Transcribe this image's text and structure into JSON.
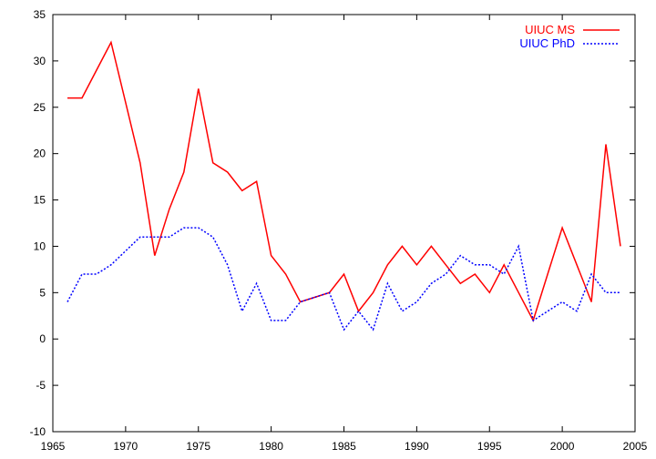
{
  "chart_data": {
    "type": "line",
    "title": "",
    "xlabel": "",
    "ylabel": "",
    "xlim": [
      1965,
      2005
    ],
    "ylim": [
      -10,
      35
    ],
    "xticks": [
      1965,
      1970,
      1975,
      1980,
      1985,
      1990,
      1995,
      2000,
      2005
    ],
    "yticks": [
      -10,
      -5,
      0,
      5,
      10,
      15,
      20,
      25,
      30,
      35
    ],
    "grid": false,
    "legend_position": "top-right",
    "series": [
      {
        "name": "UIUC MS",
        "color": "#ff0000",
        "style": "solid",
        "x": [
          1966,
          1967,
          1968,
          1969,
          1970,
          1971,
          1972,
          1973,
          1974,
          1975,
          1976,
          1977,
          1978,
          1979,
          1980,
          1981,
          1982,
          1983,
          1984,
          1985,
          1986,
          1987,
          1988,
          1989,
          1990,
          1991,
          1992,
          1993,
          1994,
          1995,
          1996,
          1997,
          1998,
          1999,
          2000,
          2001,
          2002,
          2003,
          2004
        ],
        "y": [
          26,
          26,
          29,
          32,
          25.5,
          19,
          9,
          14,
          18,
          27,
          19,
          18,
          16,
          17,
          9,
          7,
          4,
          4.5,
          5,
          7,
          3,
          5,
          8,
          10,
          8,
          10,
          8,
          6,
          7,
          5,
          8,
          5,
          2,
          7,
          12,
          8,
          4,
          21,
          10
        ]
      },
      {
        "name": "UIUC PhD",
        "color": "#0000ff",
        "style": "dotted",
        "x": [
          1966,
          1967,
          1968,
          1969,
          1970,
          1971,
          1972,
          1973,
          1974,
          1975,
          1976,
          1977,
          1978,
          1979,
          1980,
          1981,
          1982,
          1983,
          1984,
          1985,
          1986,
          1987,
          1988,
          1989,
          1990,
          1991,
          1992,
          1993,
          1994,
          1995,
          1996,
          1997,
          1998,
          1999,
          2000,
          2001,
          2002,
          2003,
          2004
        ],
        "y": [
          4,
          7,
          7,
          8,
          9.5,
          11,
          11,
          11,
          12,
          12,
          11,
          8,
          3,
          6,
          2,
          2,
          4,
          4.5,
          5,
          1,
          3,
          1,
          6,
          3,
          4,
          6,
          7,
          9,
          8,
          8,
          7,
          10,
          2,
          3,
          4,
          3,
          7,
          5,
          5
        ]
      }
    ]
  }
}
